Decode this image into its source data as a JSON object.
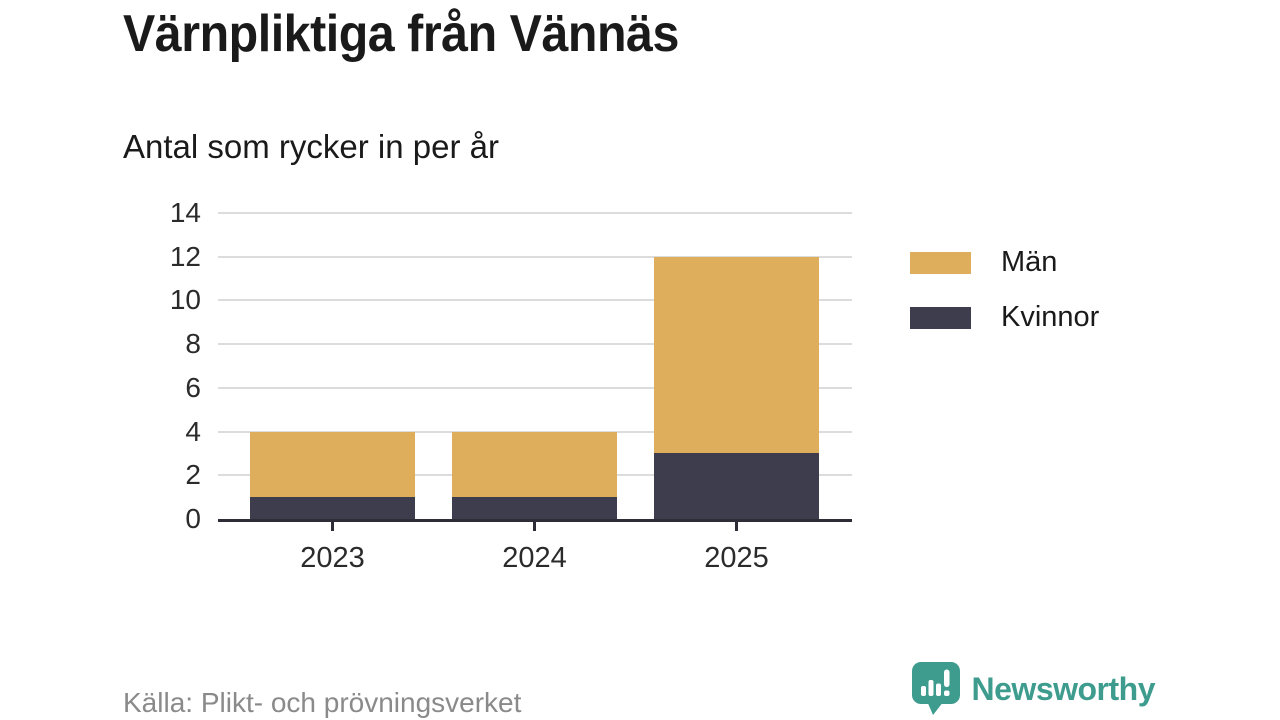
{
  "chart_data": {
    "type": "bar",
    "stacked": true,
    "title": "Värnpliktiga från Vännäs",
    "subtitle": "Antal som rycker in per år",
    "categories": [
      "2023",
      "2024",
      "2025"
    ],
    "series": [
      {
        "name": "Män",
        "color": "#DFAE5C",
        "values": [
          3,
          3,
          9
        ]
      },
      {
        "name": "Kvinnor",
        "color": "#3E3D4D",
        "values": [
          1,
          1,
          3
        ]
      }
    ],
    "stack_order_bottom_to_top": [
      "Kvinnor",
      "Män"
    ],
    "stack_totals": [
      4,
      4,
      12
    ],
    "xlabel": "",
    "ylabel": "",
    "ylim": [
      0,
      14
    ],
    "yticks": [
      0,
      2,
      4,
      6,
      8,
      10,
      12,
      14
    ],
    "grid": "horizontal",
    "legend_position": "right"
  },
  "footer": {
    "source": "Källa: Plikt- och prövningsverket",
    "brand": "Newsworthy"
  },
  "colors": {
    "men_bar": "#DFAE5C",
    "women_bar": "#3E3D4D",
    "axis": "#2D2C37",
    "grid": "#DCDCDC",
    "text": "#1A1A1A",
    "tick_text": "#2B2B2B",
    "muted_text": "#8A8A8A",
    "brand_teal": "#3E9C8E",
    "background": "#FFFFFF"
  }
}
